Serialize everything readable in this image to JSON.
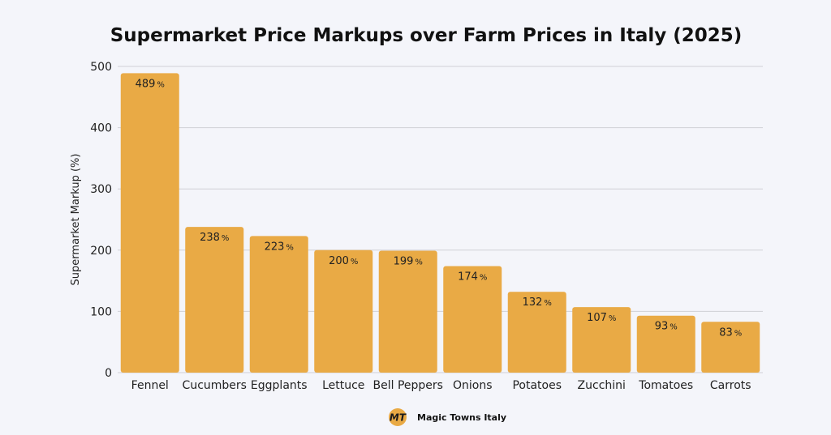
{
  "chart_data": {
    "type": "bar",
    "title": "Supermarket Price Markups over Farm Prices in Italy (2025)",
    "xlabel": "",
    "ylabel": "Supermarket Markup (%)",
    "ylim": [
      0,
      500
    ],
    "yticks": [
      0,
      100,
      200,
      300,
      400,
      500
    ],
    "grid": true,
    "categories": [
      "Fennel",
      "Cucumbers",
      "Eggplants",
      "Lettuce",
      "Bell Peppers",
      "Onions",
      "Potatoes",
      "Zucchini",
      "Tomatoes",
      "Carrots"
    ],
    "values": [
      489,
      238,
      223,
      200,
      199,
      174,
      132,
      107,
      93,
      83
    ],
    "data_label_suffix": "%",
    "bar_color": "#e9aa45",
    "grid_color": "#d0d0d6"
  },
  "footer": {
    "logo_text": "MT",
    "logo_color": "#e9aa45",
    "brand": "Magic Towns Italy"
  }
}
